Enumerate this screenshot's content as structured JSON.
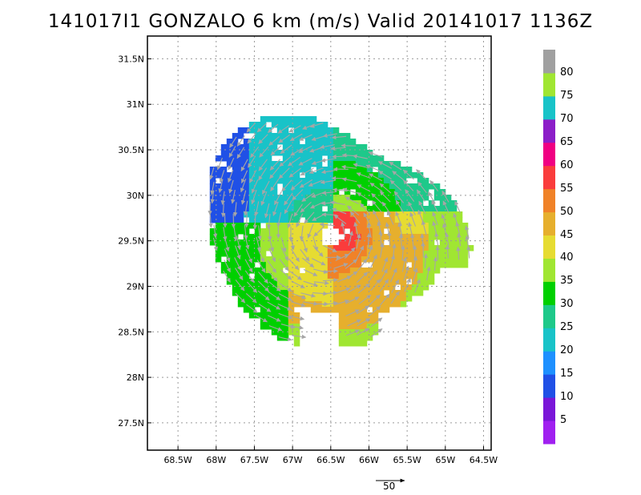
{
  "title": "141017I1 GONZALO 6 km (m/s) Valid 20141017 1136Z",
  "map": {
    "lat_labels": [
      "31.5N",
      "31N",
      "30.5N",
      "30N",
      "29.5N",
      "29N",
      "28.5N",
      "28N",
      "27.5N"
    ],
    "lat_values": [
      31.5,
      31,
      30.5,
      30,
      29.5,
      29,
      28.5,
      28,
      27.5
    ],
    "lon_labels": [
      "68.5W",
      "68W",
      "67.5W",
      "67W",
      "66.5W",
      "66W",
      "65.5W",
      "65W",
      "64.5W"
    ],
    "lon_values": [
      -68.5,
      -68,
      -67.5,
      -67,
      -66.5,
      -66,
      -65.5,
      -65,
      -64.5
    ],
    "lat_range": [
      27.2,
      31.75
    ],
    "lon_range": [
      -68.9,
      -64.4
    ],
    "center": {
      "lon": -66.5,
      "lat": 29.55
    },
    "grid": "dotted"
  },
  "colorbar": {
    "labels": [
      "5",
      "10",
      "15",
      "20",
      "25",
      "30",
      "35",
      "40",
      "45",
      "50",
      "55",
      "60",
      "65",
      "70",
      "75",
      "80"
    ],
    "colors": [
      "#a020f0",
      "#7a16d8",
      "#2050e6",
      "#1e90ff",
      "#18c3c8",
      "#1ec98a",
      "#00d000",
      "#a0e632",
      "#e6dc32",
      "#e6af2d",
      "#f08228",
      "#fa3c3c",
      "#f00082",
      "#8c1ec8",
      "#18c3c8",
      "#a0e632",
      "#a0a0a0"
    ]
  },
  "reference_vector": {
    "label": "50"
  },
  "wind_field_colors": {
    "band_outer_nw": "#2050e6",
    "band_nw": "#18c3c8",
    "band_mid": "#1ec98a",
    "band_green": "#00d000",
    "band_lightgreen": "#a0e632",
    "band_yellow": "#e6dc32",
    "band_orange": "#e6af2d",
    "band_darkorange": "#f08228",
    "band_red": "#fa3c3c",
    "arrow": "#a6a6a6"
  }
}
